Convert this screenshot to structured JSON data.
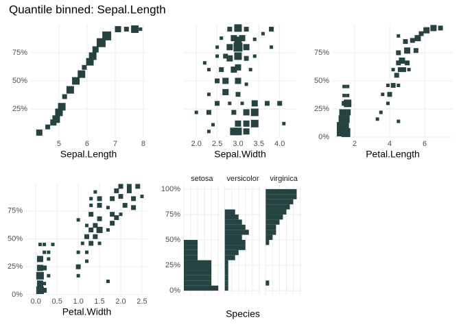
{
  "title": "Quantile binned: Sepal.Length",
  "chart_data": [
    {
      "type": "binned_scatter",
      "xlabel": "Sepal.Length",
      "color": "#254441",
      "xlim": [
        4.0,
        8.1
      ],
      "ylim": [
        0,
        100
      ],
      "xticks": [
        5,
        6,
        7,
        8
      ],
      "yticks": [
        {
          "value": 25,
          "label": "25%"
        },
        {
          "value": 50,
          "label": "50%"
        },
        {
          "value": 75,
          "label": "75%"
        }
      ],
      "show_ytick_labels": true,
      "x": [
        4.3,
        4.6,
        4.8,
        4.9,
        5.0,
        5.1,
        5.2,
        5.4,
        5.6,
        5.8,
        5.9,
        6.1,
        6.2,
        6.3,
        6.5,
        6.7,
        7.1,
        7.4,
        7.7,
        7.9
      ],
      "values": [
        4,
        9,
        13,
        16,
        22,
        27,
        36,
        42,
        50,
        56,
        62,
        67,
        72,
        78,
        84,
        90,
        96,
        96,
        96,
        96
      ],
      "sizes": [
        3,
        2,
        3,
        4,
        4,
        4,
        2,
        4,
        4,
        4,
        2,
        4,
        4,
        3,
        5,
        5,
        3,
        2,
        4,
        1
      ]
    },
    {
      "type": "binned_scatter",
      "xlabel": "Sepal.Width",
      "color": "#254441",
      "xlim": [
        1.7,
        4.4
      ],
      "ylim": [
        0,
        100
      ],
      "xticks": [
        {
          "value": 2,
          "label": "2.0"
        },
        2.5,
        {
          "value": 3,
          "label": "3.0"
        },
        3.5,
        {
          "value": 4,
          "label": "4.0"
        }
      ],
      "yticks": [
        25,
        50,
        75
      ],
      "show_ytick_labels": false,
      "x": [
        2.8,
        3.0,
        3.2,
        3.8,
        3.6,
        2.6,
        2.9,
        3.0,
        3.1,
        3.4,
        2.5,
        2.8,
        3.0,
        3.2,
        3.8,
        2.2,
        2.5,
        2.7,
        2.8,
        3.0,
        3.2,
        3.4,
        2.3,
        2.6,
        2.9,
        3.0,
        3.3,
        2.5,
        2.7,
        3.0,
        3.2,
        2.3,
        2.7,
        3.0,
        2.5,
        2.8,
        3.1,
        3.4,
        3.7,
        4.0,
        2.0,
        2.3,
        2.9,
        3.2,
        3.4,
        2.4,
        3.0,
        3.2,
        3.4,
        4.1,
        2.3,
        2.9,
        3.0,
        3.2
      ],
      "values": [
        96,
        97,
        96,
        96,
        92,
        88,
        88,
        86,
        88,
        87,
        80,
        80,
        80,
        80,
        80,
        66,
        72,
        72,
        70,
        72,
        70,
        72,
        60,
        60,
        60,
        62,
        60,
        50,
        50,
        50,
        47,
        38,
        40,
        38,
        30,
        30,
        30,
        30,
        30,
        30,
        22,
        22,
        22,
        22,
        22,
        11,
        12,
        12,
        12,
        12,
        5,
        5,
        5,
        5
      ],
      "sizes": [
        2,
        4,
        2,
        2,
        1,
        1,
        3,
        4,
        3,
        1,
        1,
        3,
        5,
        3,
        1,
        1,
        1,
        2,
        3,
        4,
        2,
        1,
        1,
        2,
        3,
        3,
        1,
        2,
        3,
        3,
        1,
        1,
        3,
        2,
        2,
        1,
        1,
        3,
        2,
        2,
        1,
        2,
        2,
        3,
        4,
        1,
        3,
        3,
        4,
        1,
        1,
        4,
        4,
        3
      ]
    },
    {
      "type": "binned_scatter",
      "xlabel": "Petal.Length",
      "color": "#254441",
      "xlim": [
        0.75,
        7.6
      ],
      "ylim": [
        0,
        100
      ],
      "xticks": [
        2,
        4,
        6
      ],
      "yticks": [
        {
          "value": 0,
          "label": "0%"
        },
        {
          "value": 25,
          "label": "25%"
        },
        {
          "value": 50,
          "label": "50%"
        },
        {
          "value": 75,
          "label": "75%"
        }
      ],
      "show_ytick_labels": true,
      "x": [
        1.2,
        1.5,
        1.2,
        1.5,
        1.3,
        1.5,
        1.3,
        1.6,
        1.4,
        1.6,
        1.4,
        1.6,
        1.4,
        1.6,
        3.3,
        3.5,
        3.9,
        3.6,
        4.0,
        4.2,
        4.5,
        3.9,
        4.4,
        4.6,
        4.8,
        4.2,
        4.5,
        4.7,
        5.0,
        5.1,
        4.5,
        5.0,
        5.5,
        4.9,
        5.3,
        5.6,
        4.5,
        5.8,
        6.1,
        6.5,
        6.9,
        4.5
      ],
      "values": [
        4,
        4,
        10,
        10,
        16,
        16,
        22,
        22,
        30,
        30,
        37,
        37,
        45,
        45,
        16,
        22,
        30,
        38,
        38,
        46,
        46,
        46,
        55,
        60,
        60,
        60,
        66,
        68,
        66,
        60,
        75,
        77,
        77,
        85,
        86,
        88,
        90,
        92,
        95,
        97,
        97,
        14
      ],
      "sizes": [
        4,
        5,
        4,
        3,
        4,
        4,
        3,
        3,
        2,
        4,
        1,
        1,
        1,
        1,
        1,
        1,
        1,
        1,
        2,
        2,
        1,
        1,
        2,
        2,
        2,
        1,
        2,
        3,
        2,
        1,
        2,
        3,
        2,
        2,
        2,
        3,
        1,
        2,
        3,
        3,
        2,
        1
      ]
    },
    {
      "type": "binned_scatter",
      "xlabel": "Petal.Width",
      "color": "#254441",
      "xlim": [
        -0.23,
        2.63
      ],
      "ylim": [
        0,
        100
      ],
      "xticks": [
        {
          "value": 0,
          "label": "0.0"
        },
        0.5,
        {
          "value": 1,
          "label": "1.0"
        },
        1.5,
        {
          "value": 2,
          "label": "2.0"
        },
        2.5
      ],
      "yticks": [
        {
          "value": 0,
          "label": "0%"
        },
        {
          "value": 25,
          "label": "25%"
        },
        {
          "value": 50,
          "label": "50%"
        },
        {
          "value": 75,
          "label": "75%"
        }
      ],
      "show_ytick_labels": true,
      "x": [
        0.1,
        0.2,
        0.1,
        0.2,
        0.1,
        0.3,
        0.1,
        0.2,
        0.1,
        0.3,
        0.2,
        0.3,
        0.1,
        0.2,
        0.4,
        1.0,
        1.0,
        1.2,
        1.0,
        1.2,
        1.1,
        1.3,
        1.5,
        1.2,
        1.4,
        1.5,
        1.3,
        1.7,
        1.2,
        1.4,
        1.8,
        1.0,
        1.5,
        1.9,
        1.3,
        1.8,
        2.0,
        1.3,
        1.5,
        1.7,
        2.1,
        2.3,
        1.3,
        1.5,
        1.8,
        2.0,
        2.3,
        2.5,
        1.4,
        1.9,
        2.2,
        2.0,
        2.2,
        2.4,
        1.7
      ],
      "values": [
        4,
        4,
        10,
        10,
        17,
        17,
        24,
        24,
        32,
        32,
        38,
        38,
        45,
        45,
        45,
        17,
        25,
        30,
        38,
        38,
        46,
        46,
        46,
        52,
        52,
        58,
        58,
        58,
        62,
        62,
        64,
        67,
        68,
        69,
        72,
        72,
        72,
        80,
        80,
        78,
        80,
        78,
        86,
        86,
        86,
        88,
        86,
        88,
        92,
        93,
        93,
        97,
        97,
        97,
        12
      ],
      "sizes": [
        4,
        2,
        3,
        1,
        4,
        1,
        3,
        2,
        3,
        1,
        1,
        1,
        1,
        1,
        1,
        1,
        2,
        1,
        1,
        1,
        1,
        2,
        1,
        2,
        2,
        3,
        2,
        1,
        1,
        2,
        2,
        1,
        2,
        2,
        2,
        2,
        1,
        1,
        2,
        1,
        2,
        2,
        1,
        2,
        2,
        2,
        2,
        1,
        1,
        2,
        2,
        2,
        2,
        2,
        1
      ]
    },
    {
      "type": "faceted_bar",
      "ylabel_x": "Species",
      "color": "#254441",
      "xlim": [
        0,
        10.5
      ],
      "ylim": [
        -4,
        104
      ],
      "xticks": [
        0,
        2,
        4,
        6,
        8,
        10
      ],
      "show_xtick_labels": false,
      "yticks": [
        {
          "value": 0,
          "label": "0%"
        },
        {
          "value": 25,
          "label": "25%"
        },
        {
          "value": 50,
          "label": "50%"
        },
        {
          "value": 75,
          "label": "75%"
        },
        {
          "value": 100,
          "label": "100%"
        }
      ],
      "y": [
        2.5,
        7.5,
        12.5,
        17.5,
        22.5,
        27.5,
        32.5,
        37.5,
        42.5,
        47.5,
        52.5,
        57.5,
        62.5,
        67.5,
        72.5,
        77.5,
        82.5,
        87.5,
        92.5,
        97.5
      ],
      "series": [
        {
          "name": "setosa",
          "values": [
            10,
            8,
            8,
            8,
            8,
            8,
            4,
            4,
            4,
            4,
            0,
            0,
            0,
            0,
            0,
            0,
            0,
            0,
            0,
            0
          ]
        },
        {
          "name": "versicolor",
          "values": [
            1,
            1,
            1,
            1,
            1,
            1,
            3,
            4,
            6,
            6,
            5,
            7,
            6,
            5,
            4,
            3,
            0,
            0,
            0,
            0
          ]
        },
        {
          "name": "virginica",
          "values": [
            0,
            1,
            0,
            0,
            0,
            0,
            0,
            0,
            0,
            1,
            2,
            3,
            3,
            4,
            5,
            6,
            7,
            8,
            9,
            9
          ]
        }
      ]
    }
  ]
}
